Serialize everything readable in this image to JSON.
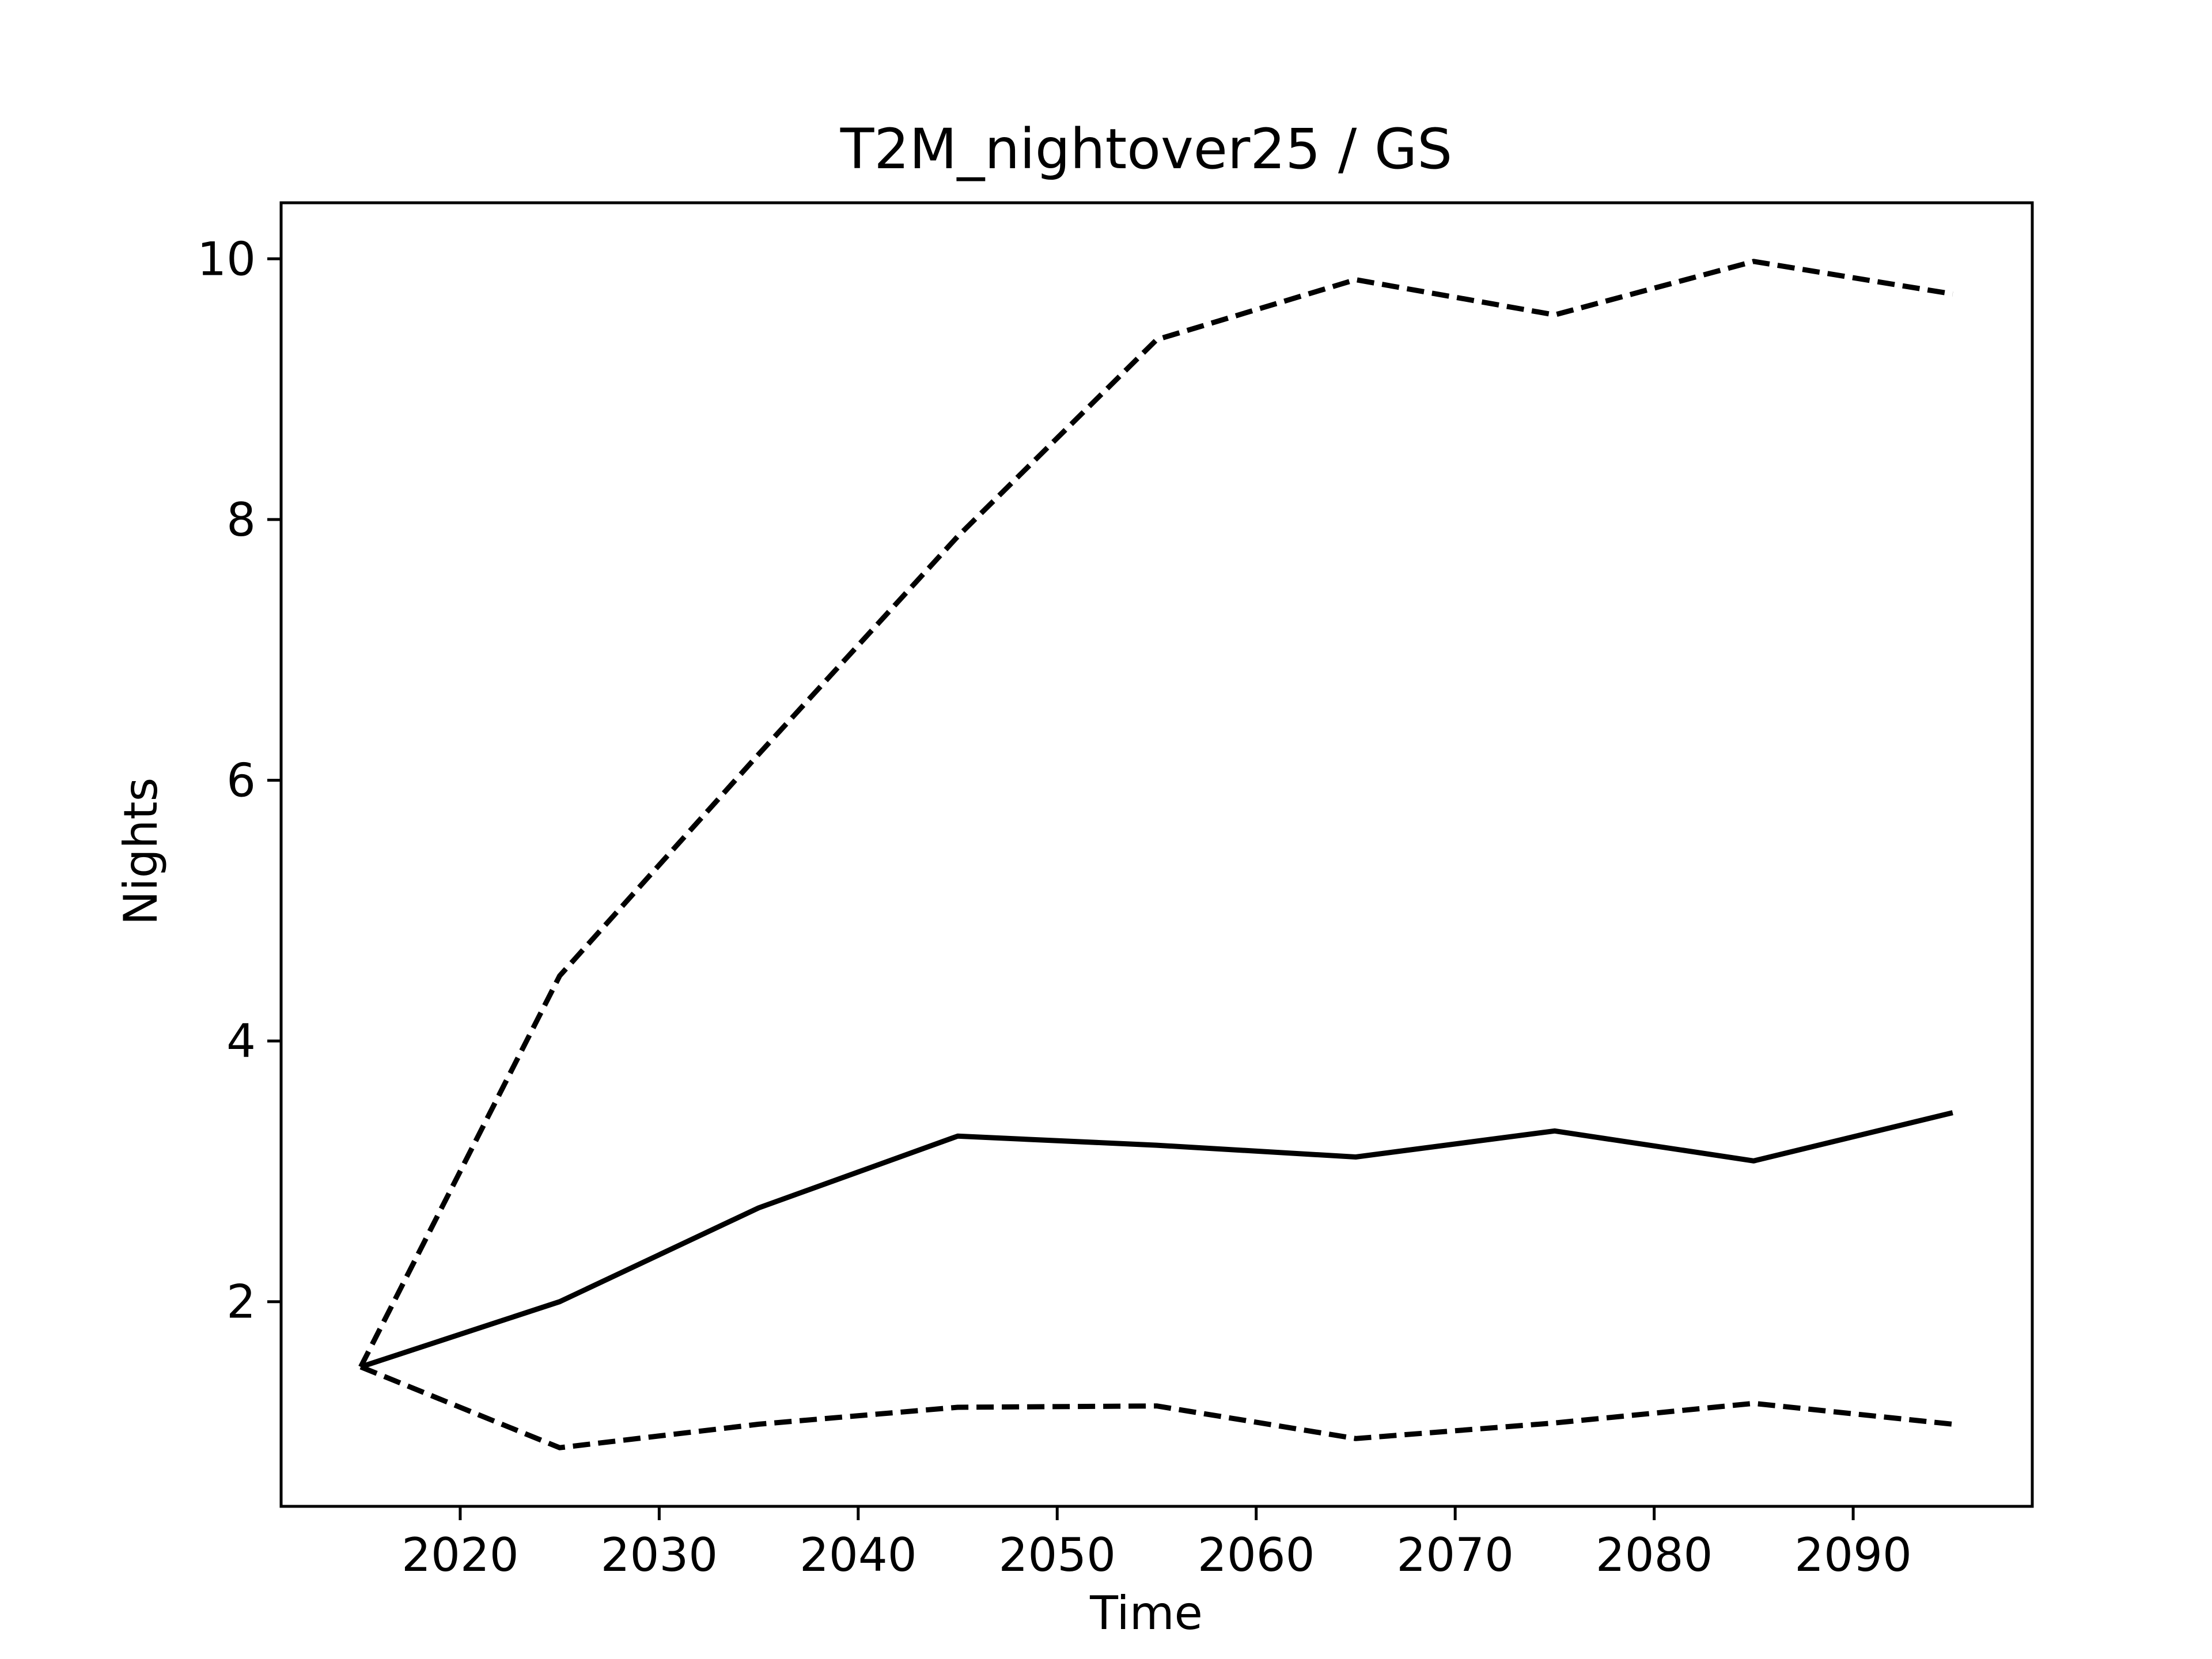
{
  "chart_data": {
    "type": "line",
    "title": "T2M_nightover25 / GS",
    "xlabel": "Time",
    "ylabel": "Nights",
    "xlim": [
      2011,
      2099
    ],
    "ylim": [
      0.43,
      10.43
    ],
    "x_ticks": [
      2020,
      2030,
      2040,
      2050,
      2060,
      2070,
      2080,
      2090
    ],
    "y_ticks": [
      2,
      4,
      6,
      8,
      10
    ],
    "grid": false,
    "legend": "none",
    "line_color": "#000000",
    "x": [
      2015,
      2025,
      2035,
      2045,
      2055,
      2065,
      2075,
      2085,
      2095
    ],
    "series": [
      {
        "style": "solid",
        "values": [
          1.5,
          2.0,
          2.72,
          3.27,
          3.2,
          3.11,
          3.31,
          3.08,
          3.45
        ]
      },
      {
        "style": "dashed",
        "values": [
          1.5,
          4.5,
          6.2,
          7.87,
          9.38,
          9.84,
          9.57,
          9.98,
          9.73
        ]
      },
      {
        "style": "dashed",
        "values": [
          1.5,
          0.88,
          1.06,
          1.19,
          1.2,
          0.95,
          1.07,
          1.22,
          1.06
        ]
      }
    ]
  }
}
